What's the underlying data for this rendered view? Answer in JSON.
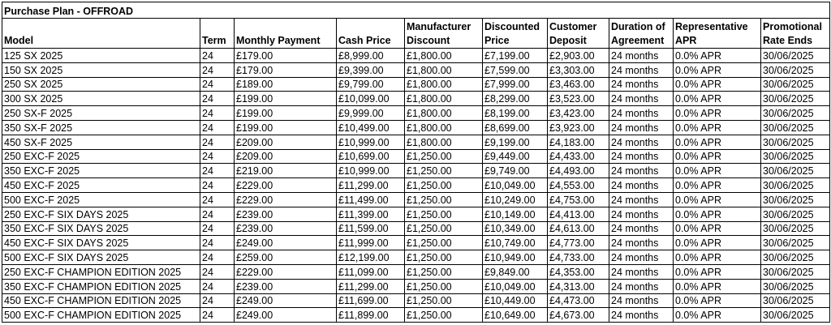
{
  "table": {
    "title": "Purchase Plan - OFFROAD",
    "header": [
      "Model",
      "Term",
      "Monthly Payment",
      "Cash Price",
      "Manufacturer Discount",
      "Discounted Price",
      "Customer Deposit",
      "Duration of Agreement",
      "Representative APR",
      "Promotional Rate Ends"
    ],
    "rows": [
      [
        "125 SX 2025",
        "24",
        "£179.00",
        "£8,999.00",
        "£1,800.00",
        "£7,199.00",
        "£2,903.00",
        "24 months",
        "0.0% APR",
        "30/06/2025"
      ],
      [
        "150 SX 2025",
        "24",
        "£179.00",
        "£9,399.00",
        "£1,800.00",
        "£7,599.00",
        "£3,303.00",
        "24 months",
        "0.0% APR",
        "30/06/2025"
      ],
      [
        "250 SX 2025",
        "24",
        "£189.00",
        "£9,799.00",
        "£1,800.00",
        "£7,999.00",
        "£3,463.00",
        "24 months",
        "0.0% APR",
        "30/06/2025"
      ],
      [
        "300 SX 2025",
        "24",
        "£199.00",
        "£10,099.00",
        "£1,800.00",
        "£8,299.00",
        "£3,523.00",
        "24 months",
        "0.0% APR",
        "30/06/2025"
      ],
      [
        "250 SX-F 2025",
        "24",
        "£199.00",
        "£9,999.00",
        "£1,800.00",
        "£8,199.00",
        "£3,423.00",
        "24 months",
        "0.0% APR",
        "30/06/2025"
      ],
      [
        "350 SX-F 2025",
        "24",
        "£199.00",
        "£10,499.00",
        "£1,800.00",
        "£8,699.00",
        "£3,923.00",
        "24 months",
        "0.0% APR",
        "30/06/2025"
      ],
      [
        "450 SX-F 2025",
        "24",
        "£209.00",
        "£10,999.00",
        "£1,800.00",
        "£9,199.00",
        "£4,183.00",
        "24 months",
        "0.0% APR",
        "30/06/2025"
      ],
      [
        "250 EXC-F 2025",
        "24",
        "£209.00",
        "£10,699.00",
        "£1,250.00",
        "£9,449.00",
        "£4,433.00",
        "24 months",
        "0.0% APR",
        "30/06/2025"
      ],
      [
        "350 EXC-F 2025",
        "24",
        "£219.00",
        "£10,999.00",
        "£1,250.00",
        "£9,749.00",
        "£4,493.00",
        "24 months",
        "0.0% APR",
        "30/06/2025"
      ],
      [
        "450 EXC-F 2025",
        "24",
        "£229.00",
        "£11,299.00",
        "£1,250.00",
        "£10,049.00",
        "£4,553.00",
        "24 months",
        "0.0% APR",
        "30/06/2025"
      ],
      [
        "500 EXC-F 2025",
        "24",
        "£229.00",
        "£11,499.00",
        "£1,250.00",
        "£10,249.00",
        "£4,753.00",
        "24 months",
        "0.0% APR",
        "30/06/2025"
      ],
      [
        "250 EXC-F SIX DAYS 2025",
        "24",
        "£239.00",
        "£11,399.00",
        "£1,250.00",
        "£10,149.00",
        "£4,413.00",
        "24 months",
        "0.0% APR",
        "30/06/2025"
      ],
      [
        "350 EXC-F SIX DAYS 2025",
        "24",
        "£239.00",
        "£11,599.00",
        "£1,250.00",
        "£10,349.00",
        "£4,613.00",
        "24 months",
        "0.0% APR",
        "30/06/2025"
      ],
      [
        "450 EXC-F SIX DAYS 2025",
        "24",
        "£249.00",
        "£11,999.00",
        "£1,250.00",
        "£10,749.00",
        "£4,773.00",
        "24 months",
        "0.0% APR",
        "30/06/2025"
      ],
      [
        "500 EXC-F SIX DAYS 2025",
        "24",
        "£259.00",
        "£12,199.00",
        "£1,250.00",
        "£10,949.00",
        "£4,733.00",
        "24 months",
        "0.0% APR",
        "30/06/2025"
      ],
      [
        "250 EXC-F CHAMPION EDITION 2025",
        "24",
        "£229.00",
        "£11,099.00",
        "£1,250.00",
        "£9,849.00",
        "£4,353.00",
        "24 months",
        "0.0% APR",
        "30/06/2025"
      ],
      [
        "350 EXC-F CHAMPION EDITION 2025",
        "24",
        "£239.00",
        "£11,299.00",
        "£1,250.00",
        "£10,049.00",
        "£4,313.00",
        "24 months",
        "0.0% APR",
        "30/06/2025"
      ],
      [
        "450 EXC-F CHAMPION EDITION 2025",
        "24",
        "£249.00",
        "£11,699.00",
        "£1,250.00",
        "£10,449.00",
        "£4,473.00",
        "24 months",
        "0.0% APR",
        "30/06/2025"
      ],
      [
        "500 EXC-F CHAMPION EDITION 2025",
        "24",
        "£249.00",
        "£11,899.00",
        "£1,250.00",
        "£10,649.00",
        "£4,673.00",
        "24 months",
        "0.0% APR",
        "30/06/2025"
      ]
    ]
  }
}
